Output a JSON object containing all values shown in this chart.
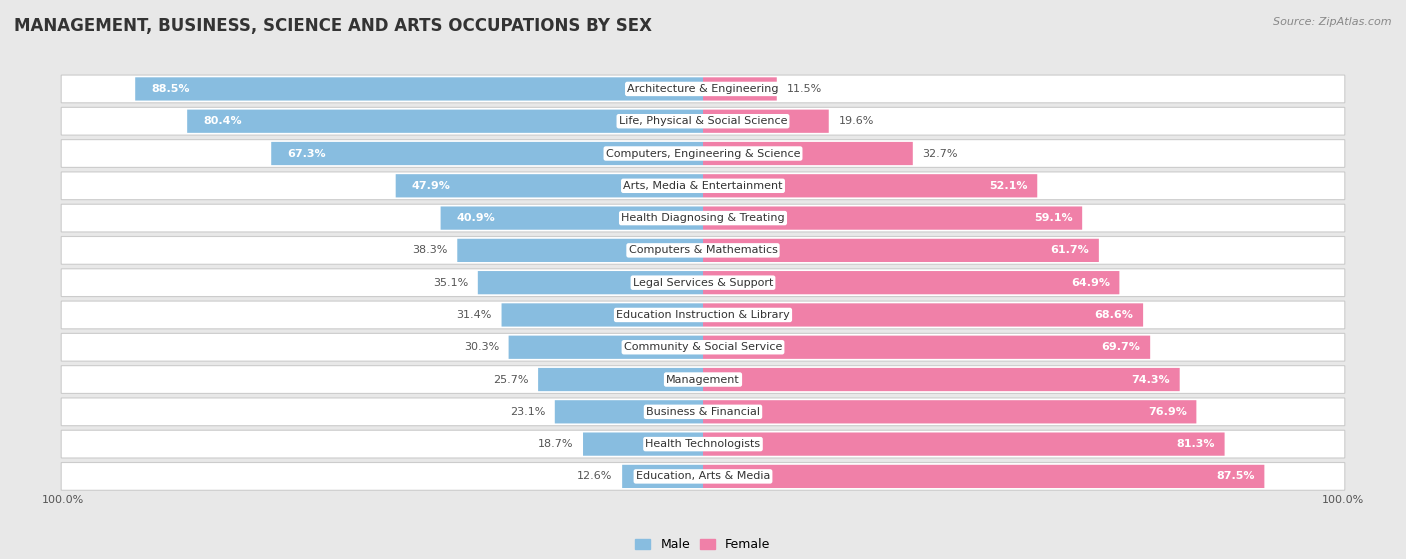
{
  "title": "MANAGEMENT, BUSINESS, SCIENCE AND ARTS OCCUPATIONS BY SEX",
  "source": "Source: ZipAtlas.com",
  "categories": [
    "Architecture & Engineering",
    "Life, Physical & Social Science",
    "Computers, Engineering & Science",
    "Arts, Media & Entertainment",
    "Health Diagnosing & Treating",
    "Computers & Mathematics",
    "Legal Services & Support",
    "Education Instruction & Library",
    "Community & Social Service",
    "Management",
    "Business & Financial",
    "Health Technologists",
    "Education, Arts & Media"
  ],
  "male_pct": [
    88.5,
    80.4,
    67.3,
    47.9,
    40.9,
    38.3,
    35.1,
    31.4,
    30.3,
    25.7,
    23.1,
    18.7,
    12.6
  ],
  "female_pct": [
    11.5,
    19.6,
    32.7,
    52.1,
    59.1,
    61.7,
    64.9,
    68.6,
    69.7,
    74.3,
    76.9,
    81.3,
    87.5
  ],
  "male_color": "#88bde0",
  "female_color": "#f080a8",
  "bg_color": "#e8e8e8",
  "row_bg_color": "#ffffff",
  "title_fontsize": 12,
  "label_fontsize": 8,
  "pct_fontsize": 8,
  "legend_fontsize": 9,
  "source_fontsize": 8
}
